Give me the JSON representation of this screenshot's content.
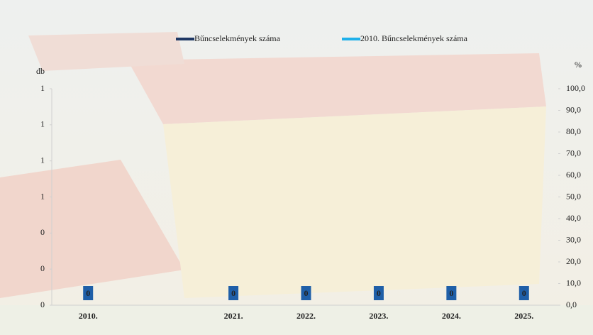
{
  "chart_data": {
    "type": "bar",
    "categories": [
      "2010.",
      null,
      "2021.",
      "2022.",
      "2023.",
      "2024.",
      "2025."
    ],
    "series": [
      {
        "name": "Bűncselekmények száma",
        "color": "#1f3864",
        "values": [
          0,
          null,
          0,
          0,
          0,
          0,
          0
        ]
      },
      {
        "name": "2010. Bűncselekmények száma",
        "color": "#1fb0ea",
        "axis": "y2",
        "values": [
          null,
          null,
          null,
          null,
          null,
          null,
          null
        ]
      }
    ],
    "y_label": "db",
    "y2_label": "%",
    "ylim": [
      0,
      1.2
    ],
    "yticks": [
      0,
      {
        "value": 0.2,
        "label": "0"
      },
      {
        "value": 0.4,
        "label": "0"
      },
      {
        "value": 0.6,
        "label": "1"
      },
      {
        "value": 0.8,
        "label": "1"
      },
      {
        "value": 1.0,
        "label": "1"
      },
      {
        "value": 1.2,
        "label": "1"
      }
    ],
    "y2lim": [
      0,
      100
    ],
    "y2ticks": [
      {
        "value": 0,
        "label": "0,0"
      },
      {
        "value": 10,
        "label": "10,0"
      },
      {
        "value": 20,
        "label": "20,0"
      },
      {
        "value": 30,
        "label": "30,0"
      },
      {
        "value": 40,
        "label": "40,0"
      },
      {
        "value": 50,
        "label": "50,0"
      },
      {
        "value": 60,
        "label": "60,0"
      },
      {
        "value": 70,
        "label": "70,0"
      },
      {
        "value": 80,
        "label": "80,0"
      },
      {
        "value": 90,
        "label": "90,0"
      },
      {
        "value": 100,
        "label": "100,0"
      }
    ],
    "label_color": "#1f5fa8"
  }
}
